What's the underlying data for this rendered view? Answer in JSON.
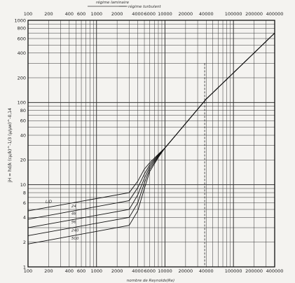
{
  "chart_data": {
    "type": "line",
    "title": "",
    "xlabel": "nombre de Reynolds(Re)",
    "ylabel": "jH = hd/k (cμ/k)^-1/3 (μ/μw)^-0,14",
    "xscale": "log",
    "yscale": "log",
    "xlim": [
      100,
      400000
    ],
    "ylim": [
      1,
      1000
    ],
    "grid": true,
    "x_ticks_bottom": [
      "100",
      "200",
      "400",
      "600",
      "1000",
      "2000",
      "4000",
      "6000",
      "10000",
      "20000",
      "40000",
      "100000",
      "200000",
      "400000"
    ],
    "x_ticks_top": [
      "100",
      "200",
      "400",
      "600",
      "1000",
      "2000",
      "4000",
      "6000",
      "10000",
      "20000",
      "40000",
      "100000",
      "200000",
      "400000"
    ],
    "y_ticks": [
      "1",
      "2",
      "4",
      "6",
      "8",
      "10",
      "20",
      "40",
      "60",
      "80",
      "100",
      "200",
      "400",
      "600",
      "800",
      "1000"
    ],
    "regime_labels": {
      "laminar": "régime laminaire",
      "turbulent": "régime turbulent"
    },
    "series": [
      {
        "name": "L/D = 24",
        "x": [
          100,
          3000,
          4000,
          5000,
          6000,
          8000,
          10000,
          40000,
          400000
        ],
        "y": [
          4.8,
          8.0,
          11.0,
          15.5,
          18.5,
          23.5,
          28.0,
          110.0,
          700.0
        ]
      },
      {
        "name": "48",
        "x": [
          100,
          3000,
          4000,
          5000,
          6000,
          8000,
          10000,
          40000,
          400000
        ],
        "y": [
          3.8,
          6.4,
          9.2,
          13.5,
          17.5,
          23.0,
          28.0,
          110.0,
          700.0
        ]
      },
      {
        "name": "96",
        "x": [
          100,
          3000,
          4000,
          5000,
          6000,
          8000,
          10000,
          40000,
          400000
        ],
        "y": [
          3.0,
          5.0,
          7.5,
          12.0,
          16.5,
          22.5,
          28.0,
          110.0,
          700.0
        ]
      },
      {
        "name": "240",
        "x": [
          100,
          3000,
          4000,
          5000,
          6000,
          8000,
          10000,
          40000,
          400000
        ],
        "y": [
          2.4,
          4.0,
          6.0,
          10.5,
          15.5,
          22.0,
          28.0,
          110.0,
          700.0
        ]
      },
      {
        "name": "500",
        "x": [
          100,
          3000,
          4000,
          5000,
          6000,
          8000,
          10000,
          40000,
          400000
        ],
        "y": [
          1.9,
          3.2,
          4.8,
          9.0,
          14.5,
          21.5,
          28.0,
          110.0,
          700.0
        ]
      }
    ],
    "annotations": [
      "L/D",
      "24",
      "48",
      "96",
      "240",
      "500"
    ]
  }
}
